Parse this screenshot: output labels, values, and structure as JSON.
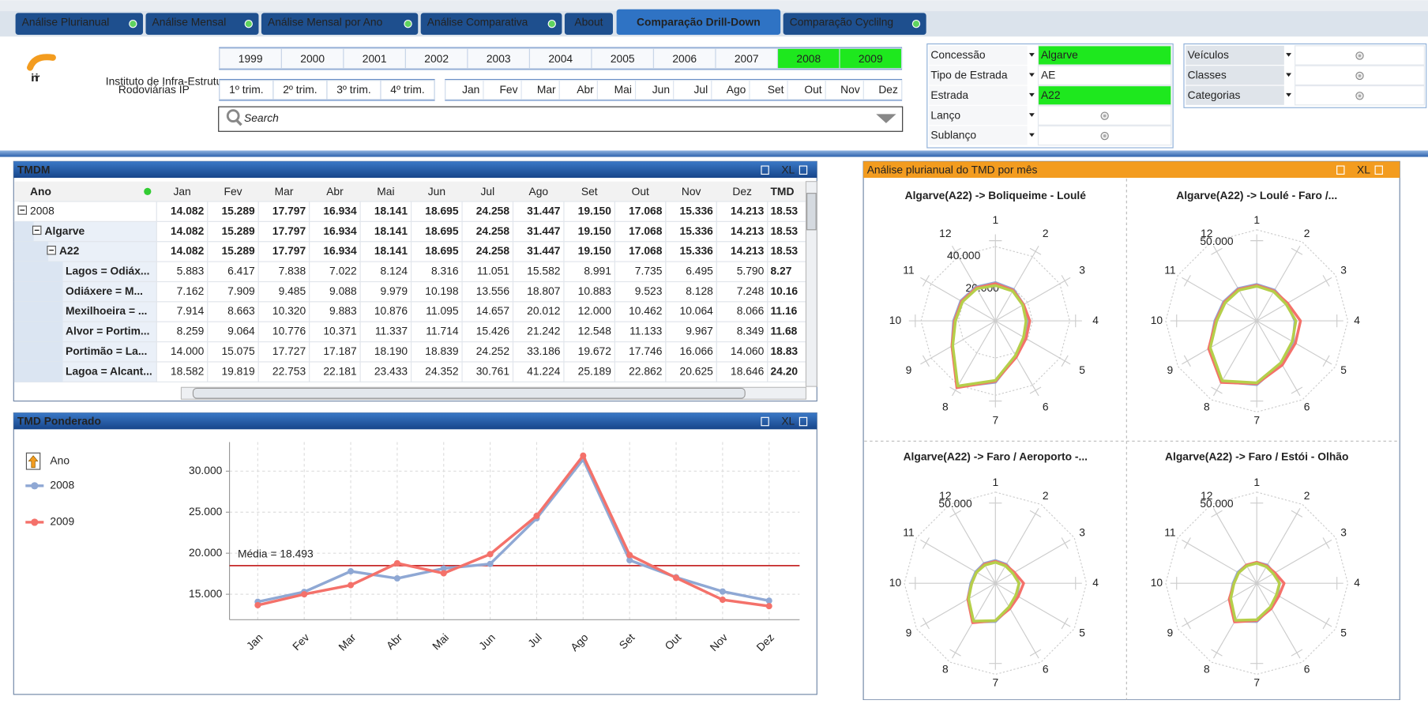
{
  "tabs": {
    "items": [
      "Análise Plurianual",
      "Análise Mensal",
      "Análise Mensal por Ano",
      "Análise Comparativa",
      "About",
      "Comparação Drill-Down",
      "Comparação Cyclilng"
    ],
    "active": 5
  },
  "logo": {
    "mark": "inir",
    "line1": "Instituto de Infra-Estruturas",
    "line2": "Rodoviárias IP"
  },
  "years": [
    {
      "label": "1999"
    },
    {
      "label": "2000"
    },
    {
      "label": "2001"
    },
    {
      "label": "2002"
    },
    {
      "label": "2003"
    },
    {
      "label": "2004"
    },
    {
      "label": "2005"
    },
    {
      "label": "2006"
    },
    {
      "label": "2007"
    },
    {
      "label": "2008",
      "selected": true
    },
    {
      "label": "2009",
      "selected": true
    }
  ],
  "quarters": [
    "1º trim.",
    "2º trim.",
    "3º trim.",
    "4º trim."
  ],
  "months": [
    "Jan",
    "Fev",
    "Mar",
    "Abr",
    "Mai",
    "Jun",
    "Jul",
    "Ago",
    "Set",
    "Out",
    "Nov",
    "Dez"
  ],
  "search": "Search",
  "filters": [
    {
      "label": "Concessão",
      "value": "Algarve",
      "selected": true
    },
    {
      "label": "Tipo de Estrada",
      "value": "AE"
    },
    {
      "label": "Estrada",
      "value": "A22",
      "selected": true
    },
    {
      "label": "Lanço"
    },
    {
      "label": "Sublanço"
    }
  ],
  "filters2": [
    {
      "label": "Veículos"
    },
    {
      "label": "Classes"
    },
    {
      "label": "Categorias"
    }
  ],
  "export_label": "XL",
  "table": {
    "title": "TMDM",
    "columns": [
      "Ano",
      "Jan",
      "Fev",
      "Mar",
      "Abr",
      "Mai",
      "Jun",
      "Jul",
      "Ago",
      "Set",
      "Out",
      "Nov",
      "Dez",
      "TMD"
    ],
    "rows": [
      {
        "label": "2008",
        "level": 0,
        "bold": true,
        "cells": [
          "14.082",
          "15.289",
          "17.797",
          "16.934",
          "18.141",
          "18.695",
          "24.258",
          "31.447",
          "19.150",
          "17.068",
          "15.336",
          "14.213",
          "18.53"
        ]
      },
      {
        "label": "Algarve",
        "level": 1,
        "bold": true,
        "cells": [
          "14.082",
          "15.289",
          "17.797",
          "16.934",
          "18.141",
          "18.695",
          "24.258",
          "31.447",
          "19.150",
          "17.068",
          "15.336",
          "14.213",
          "18.53"
        ]
      },
      {
        "label": "A22",
        "level": 2,
        "bold": true,
        "cells": [
          "14.082",
          "15.289",
          "17.797",
          "16.934",
          "18.141",
          "18.695",
          "24.258",
          "31.447",
          "19.150",
          "17.068",
          "15.336",
          "14.213",
          "18.53"
        ]
      },
      {
        "label": "Lagos = Odiáx...",
        "level": 3,
        "cells": [
          "5.883",
          "6.417",
          "7.838",
          "7.022",
          "8.124",
          "8.316",
          "11.051",
          "15.582",
          "8.991",
          "7.735",
          "6.495",
          "5.790",
          "8.27"
        ]
      },
      {
        "label": "Odiáxere = M...",
        "level": 3,
        "cells": [
          "7.162",
          "7.909",
          "9.485",
          "9.088",
          "9.979",
          "10.198",
          "13.556",
          "18.807",
          "10.883",
          "9.523",
          "8.128",
          "7.248",
          "10.16"
        ]
      },
      {
        "label": "Mexilhoeira = ...",
        "level": 3,
        "cells": [
          "7.914",
          "8.663",
          "10.320",
          "9.883",
          "10.876",
          "11.095",
          "14.657",
          "20.012",
          "12.000",
          "10.462",
          "10.064",
          "8.066",
          "11.16"
        ]
      },
      {
        "label": "Alvor = Portim...",
        "level": 3,
        "cells": [
          "8.259",
          "9.064",
          "10.776",
          "10.371",
          "11.337",
          "11.714",
          "15.426",
          "21.242",
          "12.548",
          "11.133",
          "9.967",
          "8.349",
          "11.68"
        ]
      },
      {
        "label": "Portimão = La...",
        "level": 3,
        "cells": [
          "14.000",
          "15.075",
          "17.727",
          "17.187",
          "18.190",
          "18.839",
          "24.252",
          "33.186",
          "19.672",
          "17.746",
          "16.066",
          "14.060",
          "18.83"
        ]
      },
      {
        "label": "Lagoa = Alcant...",
        "level": 3,
        "cells": [
          "18.582",
          "19.819",
          "22.753",
          "22.181",
          "23.433",
          "24.352",
          "30.761",
          "41.224",
          "25.189",
          "22.862",
          "20.625",
          "18.646",
          "24.20"
        ]
      }
    ]
  },
  "radar_panel": {
    "title": "Análise plurianual do TMD por mês"
  },
  "chart_data": [
    {
      "type": "line",
      "title": "TMD Ponderado",
      "legend_title": "Ano",
      "categories": [
        "Jan",
        "Fev",
        "Mar",
        "Abr",
        "Mai",
        "Jun",
        "Jul",
        "Ago",
        "Set",
        "Out",
        "Nov",
        "Dez"
      ],
      "series": [
        {
          "name": "2008",
          "color": "#8fa8d4",
          "values": [
            14082,
            15289,
            17797,
            16934,
            18141,
            18695,
            24258,
            31447,
            19150,
            17068,
            15336,
            14213
          ]
        },
        {
          "name": "2009",
          "color": "#f4716a",
          "values": [
            13667,
            15000,
            16111,
            18778,
            17556,
            19889,
            24556,
            31889,
            19778,
            17000,
            14333,
            13556
          ]
        }
      ],
      "ylim": [
        11900,
        33550
      ],
      "yticks": [
        {
          "value": 15000,
          "label": "15.000"
        },
        {
          "value": 20000,
          "label": "20.000"
        },
        {
          "value": 25000,
          "label": "25.000"
        },
        {
          "value": 30000,
          "label": "30.000"
        }
      ],
      "reference_line": {
        "value": 18493,
        "label": "Média = 18.493",
        "color": "#c62828"
      },
      "grid": true
    },
    {
      "type": "radar",
      "title": "Algarve(A22) -> Boliqueime - Loulé",
      "categories": [
        1,
        2,
        3,
        4,
        5,
        6,
        7,
        8,
        9,
        10,
        11,
        12
      ],
      "rlim": [
        0,
        49000
      ],
      "rticks": [
        {
          "value": 20000,
          "label": "20.000"
        },
        {
          "value": 40000,
          "label": "40.000"
        }
      ],
      "series": [
        {
          "color": "#8fa8d4",
          "values": [
            20600,
            19500,
            17500,
            17000,
            18000,
            22000,
            33000,
            41000,
            27000,
            22500,
            21500,
            21000
          ]
        },
        {
          "color": "#f4716a",
          "values": [
            20000,
            19000,
            17500,
            18500,
            19000,
            22500,
            32500,
            41500,
            27000,
            22000,
            21000,
            20500
          ]
        },
        {
          "color": "#b5cf4a",
          "values": [
            19000,
            18500,
            17000,
            16500,
            17500,
            21500,
            32000,
            40500,
            26500,
            21500,
            20500,
            20000
          ]
        }
      ]
    },
    {
      "type": "radar",
      "title": "Algarve(A22) -> Loulé - Faro /...",
      "categories": [
        1,
        2,
        3,
        4,
        5,
        6,
        7,
        8,
        9,
        10,
        11,
        12
      ],
      "rlim": [
        0,
        50000
      ],
      "rticks": [
        {
          "value": 50000,
          "label": "50.000"
        }
      ],
      "series": [
        {
          "color": "#8fa8d4",
          "values": [
            20000,
            19500,
            19000,
            21000,
            23000,
            27000,
            35000,
            38500,
            30000,
            23000,
            21000,
            20500
          ]
        },
        {
          "color": "#f4716a",
          "values": [
            19500,
            19000,
            19500,
            24000,
            24500,
            28000,
            34500,
            39000,
            30500,
            22500,
            20500,
            20000
          ]
        },
        {
          "color": "#b5cf4a",
          "values": [
            19000,
            18500,
            18500,
            21500,
            22500,
            26500,
            34000,
            38000,
            29500,
            22000,
            20000,
            19500
          ]
        }
      ]
    },
    {
      "type": "radar",
      "title": "Algarve(A22) -> Faro / Aeroporto -...",
      "categories": [
        1,
        2,
        3,
        4,
        5,
        6,
        7,
        8,
        9,
        10,
        11,
        12
      ],
      "rlim": [
        0,
        50000
      ],
      "rticks": [
        {
          "value": 50000,
          "label": "50.000"
        }
      ],
      "series": [
        {
          "color": "#8fa8d4",
          "values": [
            12500,
            12000,
            11500,
            13000,
            13500,
            15500,
            21000,
            24500,
            17500,
            13500,
            12500,
            12500
          ]
        },
        {
          "color": "#f4716a",
          "values": [
            12000,
            11500,
            12000,
            15500,
            14500,
            16000,
            20500,
            25000,
            17500,
            13000,
            12000,
            12000
          ]
        },
        {
          "color": "#b5cf4a",
          "values": [
            11500,
            11000,
            11000,
            13000,
            13000,
            15000,
            20500,
            24000,
            17000,
            13000,
            12000,
            11500
          ]
        }
      ]
    },
    {
      "type": "radar",
      "title": "Algarve(A22) -> Faro / Estói - Olhão",
      "categories": [
        1,
        2,
        3,
        4,
        5,
        6,
        7,
        8,
        9,
        10,
        11,
        12
      ],
      "rlim": [
        0,
        50000
      ],
      "rticks": [
        {
          "value": 50000,
          "label": "50.000"
        }
      ],
      "series": [
        {
          "color": "#8fa8d4",
          "values": [
            11500,
            11500,
            11000,
            12500,
            13000,
            15500,
            21000,
            24000,
            17000,
            13000,
            12000,
            11500
          ]
        },
        {
          "color": "#f4716a",
          "values": [
            11500,
            11000,
            11500,
            15000,
            14000,
            16000,
            20500,
            24500,
            17500,
            12500,
            11500,
            11500
          ]
        },
        {
          "color": "#b5cf4a",
          "values": [
            11000,
            10500,
            10500,
            12500,
            12500,
            15000,
            20000,
            23500,
            16500,
            12500,
            11500,
            11000
          ]
        }
      ]
    }
  ]
}
